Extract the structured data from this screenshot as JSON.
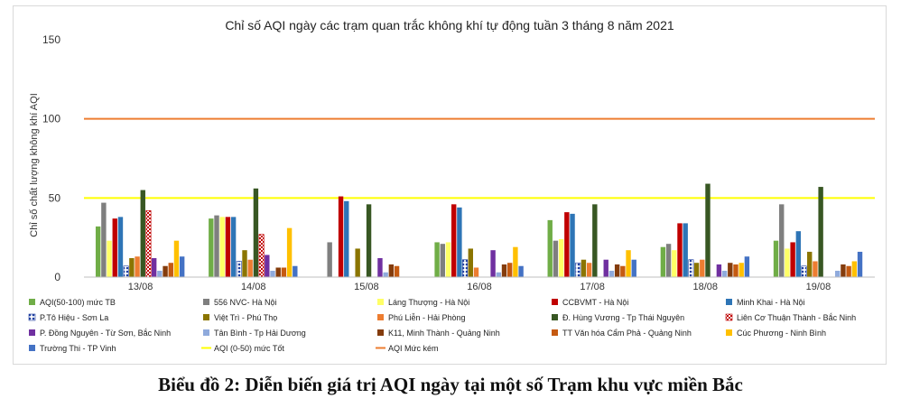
{
  "caption": "Biểu đồ 2: Diễn biến giá trị AQI ngày tại một số Trạm khu vực miền Bắc",
  "chart_data": {
    "type": "bar",
    "title": "Chỉ số AQI ngày các trạm quan trắc không khí tự động tuần 3 tháng 8 năm 2021",
    "ylabel": "Chỉ số chất lượng không khí AQI",
    "xlabel": "",
    "ylim": [
      0,
      150
    ],
    "yticks": [
      0,
      50,
      100,
      150
    ],
    "grid": false,
    "legend_position": "bottom",
    "categories": [
      "13/08",
      "14/08",
      "15/08",
      "16/08",
      "17/08",
      "18/08",
      "19/08"
    ],
    "series": [
      {
        "name": "AQI(50-100) mức TB",
        "color": "#70AD47",
        "values": [
          32,
          37,
          null,
          22,
          36,
          19,
          23
        ]
      },
      {
        "name": "556 NVC- Hà Nội",
        "color": "#7F7F7F",
        "values": [
          47,
          39,
          22,
          21,
          23,
          21,
          46
        ]
      },
      {
        "name": "Láng Thượng - Hà Nội",
        "color": "#FFFF66",
        "values": [
          23,
          38,
          null,
          22,
          24,
          17,
          18
        ]
      },
      {
        "name": "CCBVMT - Hà Nội",
        "color": "#C00000",
        "values": [
          37,
          38,
          51,
          46,
          41,
          34,
          22
        ]
      },
      {
        "name": "Minh Khai - Hà Nội",
        "color": "#2E75B6",
        "values": [
          38,
          38,
          48,
          44,
          40,
          34,
          29
        ]
      },
      {
        "name": "P.Tô Hiệu - Sơn La",
        "color": "#1F3FA0",
        "pattern": "dots",
        "values": [
          7,
          10,
          null,
          11,
          9,
          11,
          7
        ]
      },
      {
        "name": "Việt Trì - Phú Thọ",
        "color": "#8B7500",
        "values": [
          12,
          17,
          18,
          18,
          11,
          9,
          16
        ]
      },
      {
        "name": "Phú Liễn - Hải Phòng",
        "color": "#ED7D31",
        "values": [
          13,
          11,
          null,
          6,
          9,
          11,
          10
        ]
      },
      {
        "name": "Đ. Hùng Vương - Tp Thái Nguyên",
        "color": "#385723",
        "values": [
          55,
          56,
          46,
          null,
          46,
          59,
          57
        ]
      },
      {
        "name": "Liên Cơ Thuận Thành - Bắc Ninh",
        "color": "#C00000",
        "pattern": "check",
        "values": [
          42,
          27,
          null,
          null,
          null,
          null,
          null
        ]
      },
      {
        "name": "P. Đồng Nguyên - Từ Sơn, Bắc Ninh",
        "color": "#7030A0",
        "values": [
          12,
          14,
          12,
          17,
          11,
          8,
          null
        ]
      },
      {
        "name": "Tân Bình - Tp Hải Dương",
        "color": "#8FAADC",
        "values": [
          4,
          4,
          3,
          3,
          4,
          4,
          4
        ]
      },
      {
        "name": "K11, Minh Thành - Quảng Ninh",
        "color": "#843C0C",
        "values": [
          7,
          6,
          8,
          8,
          8,
          9,
          8
        ]
      },
      {
        "name": "TT Văn hóa Cẩm Phả - Quảng Ninh",
        "color": "#C55A11",
        "values": [
          9,
          6,
          7,
          9,
          7,
          8,
          7
        ]
      },
      {
        "name": "Cúc Phương - Ninh Bình",
        "color": "#FFC000",
        "values": [
          23,
          31,
          null,
          19,
          17,
          9,
          10
        ]
      },
      {
        "name": "Trường Thi - TP Vinh",
        "color": "#4472C4",
        "values": [
          13,
          7,
          null,
          7,
          11,
          13,
          16
        ]
      }
    ],
    "reference_lines": [
      {
        "name": "AQI (0-50) mức Tốt",
        "value": 50,
        "color": "#FFFF00"
      },
      {
        "name": "AQI Mức kém",
        "value": 100,
        "color": "#ED7D31"
      }
    ]
  }
}
